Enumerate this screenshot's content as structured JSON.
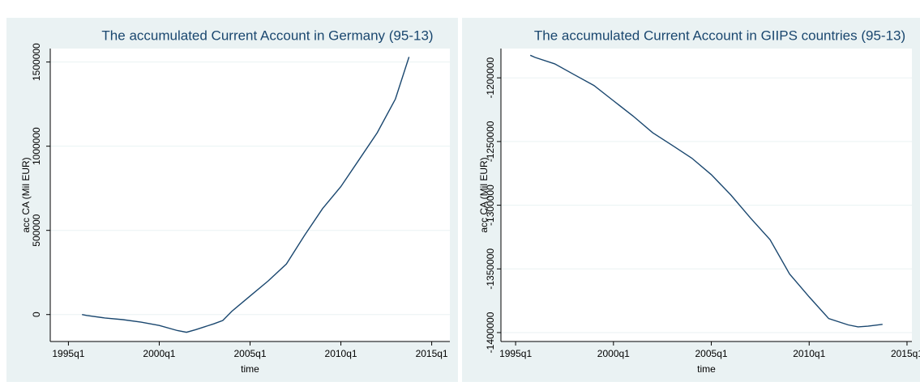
{
  "chart_data": [
    {
      "type": "line",
      "title": "The accumulated Current Account in Germany (95-13)",
      "x_label": "time",
      "y_label": "acc CA (Mil EUR)",
      "x": [
        "1995q4",
        "1996q1",
        "1997q1",
        "1998q1",
        "1999q1",
        "2000q1",
        "2001q1",
        "2001q3",
        "2002q1",
        "2003q1",
        "2003q3",
        "2004q1",
        "2005q1",
        "2006q1",
        "2007q1",
        "2008q1",
        "2009q1",
        "2010q1",
        "2011q1",
        "2012q1",
        "2013q1",
        "2013q4"
      ],
      "series": [
        {
          "name": "acc CA",
          "color": "#1a476f",
          "values": [
            0,
            -5000,
            -20000,
            -30000,
            -45000,
            -65000,
            -95000,
            -105000,
            -90000,
            -55000,
            -35000,
            20000,
            110000,
            200000,
            300000,
            470000,
            630000,
            760000,
            920000,
            1080000,
            1280000,
            1530000
          ]
        }
      ],
      "xlim": [
        "1994q1",
        "2016q1"
      ],
      "xticks": [
        "1995q1",
        "2000q1",
        "2005q1",
        "2010q1",
        "2015q1"
      ],
      "ylim": [
        -160000,
        1580000
      ],
      "yticks": [
        0,
        500000,
        1000000,
        1500000
      ],
      "grid": true
    },
    {
      "type": "line",
      "title": "The accumulated Current Account in GIIPS countries (95-13)",
      "x_label": "time",
      "y_label": "acc CA (Mil EUR)",
      "x": [
        "1995q4",
        "1996q1",
        "1997q1",
        "1998q1",
        "1999q1",
        "2000q1",
        "2001q1",
        "2002q1",
        "2003q1",
        "2004q1",
        "2005q1",
        "2006q1",
        "2007q1",
        "2008q1",
        "2009q1",
        "2010q1",
        "2011q1",
        "2012q1",
        "2012q3",
        "2013q1",
        "2013q4"
      ],
      "series": [
        {
          "name": "acc CA",
          "color": "#1a476f",
          "values": [
            -1182300,
            -1184000,
            -1189000,
            -1197500,
            -1206000,
            -1218000,
            -1230000,
            -1243000,
            -1253000,
            -1263000,
            -1276000,
            -1292000,
            -1310000,
            -1327000,
            -1354000,
            -1372000,
            -1389000,
            -1394000,
            -1395500,
            -1395000,
            -1393500
          ]
        }
      ],
      "xlim": [
        "1994q2",
        "2015q2"
      ],
      "xticks": [
        "1995q1",
        "2000q1",
        "2005q1",
        "2010q1",
        "2015q1"
      ],
      "ylim": [
        -1407000,
        -1177000
      ],
      "yticks": [
        -1200000,
        -1250000,
        -1300000,
        -1350000,
        -1400000
      ],
      "grid": true
    }
  ]
}
